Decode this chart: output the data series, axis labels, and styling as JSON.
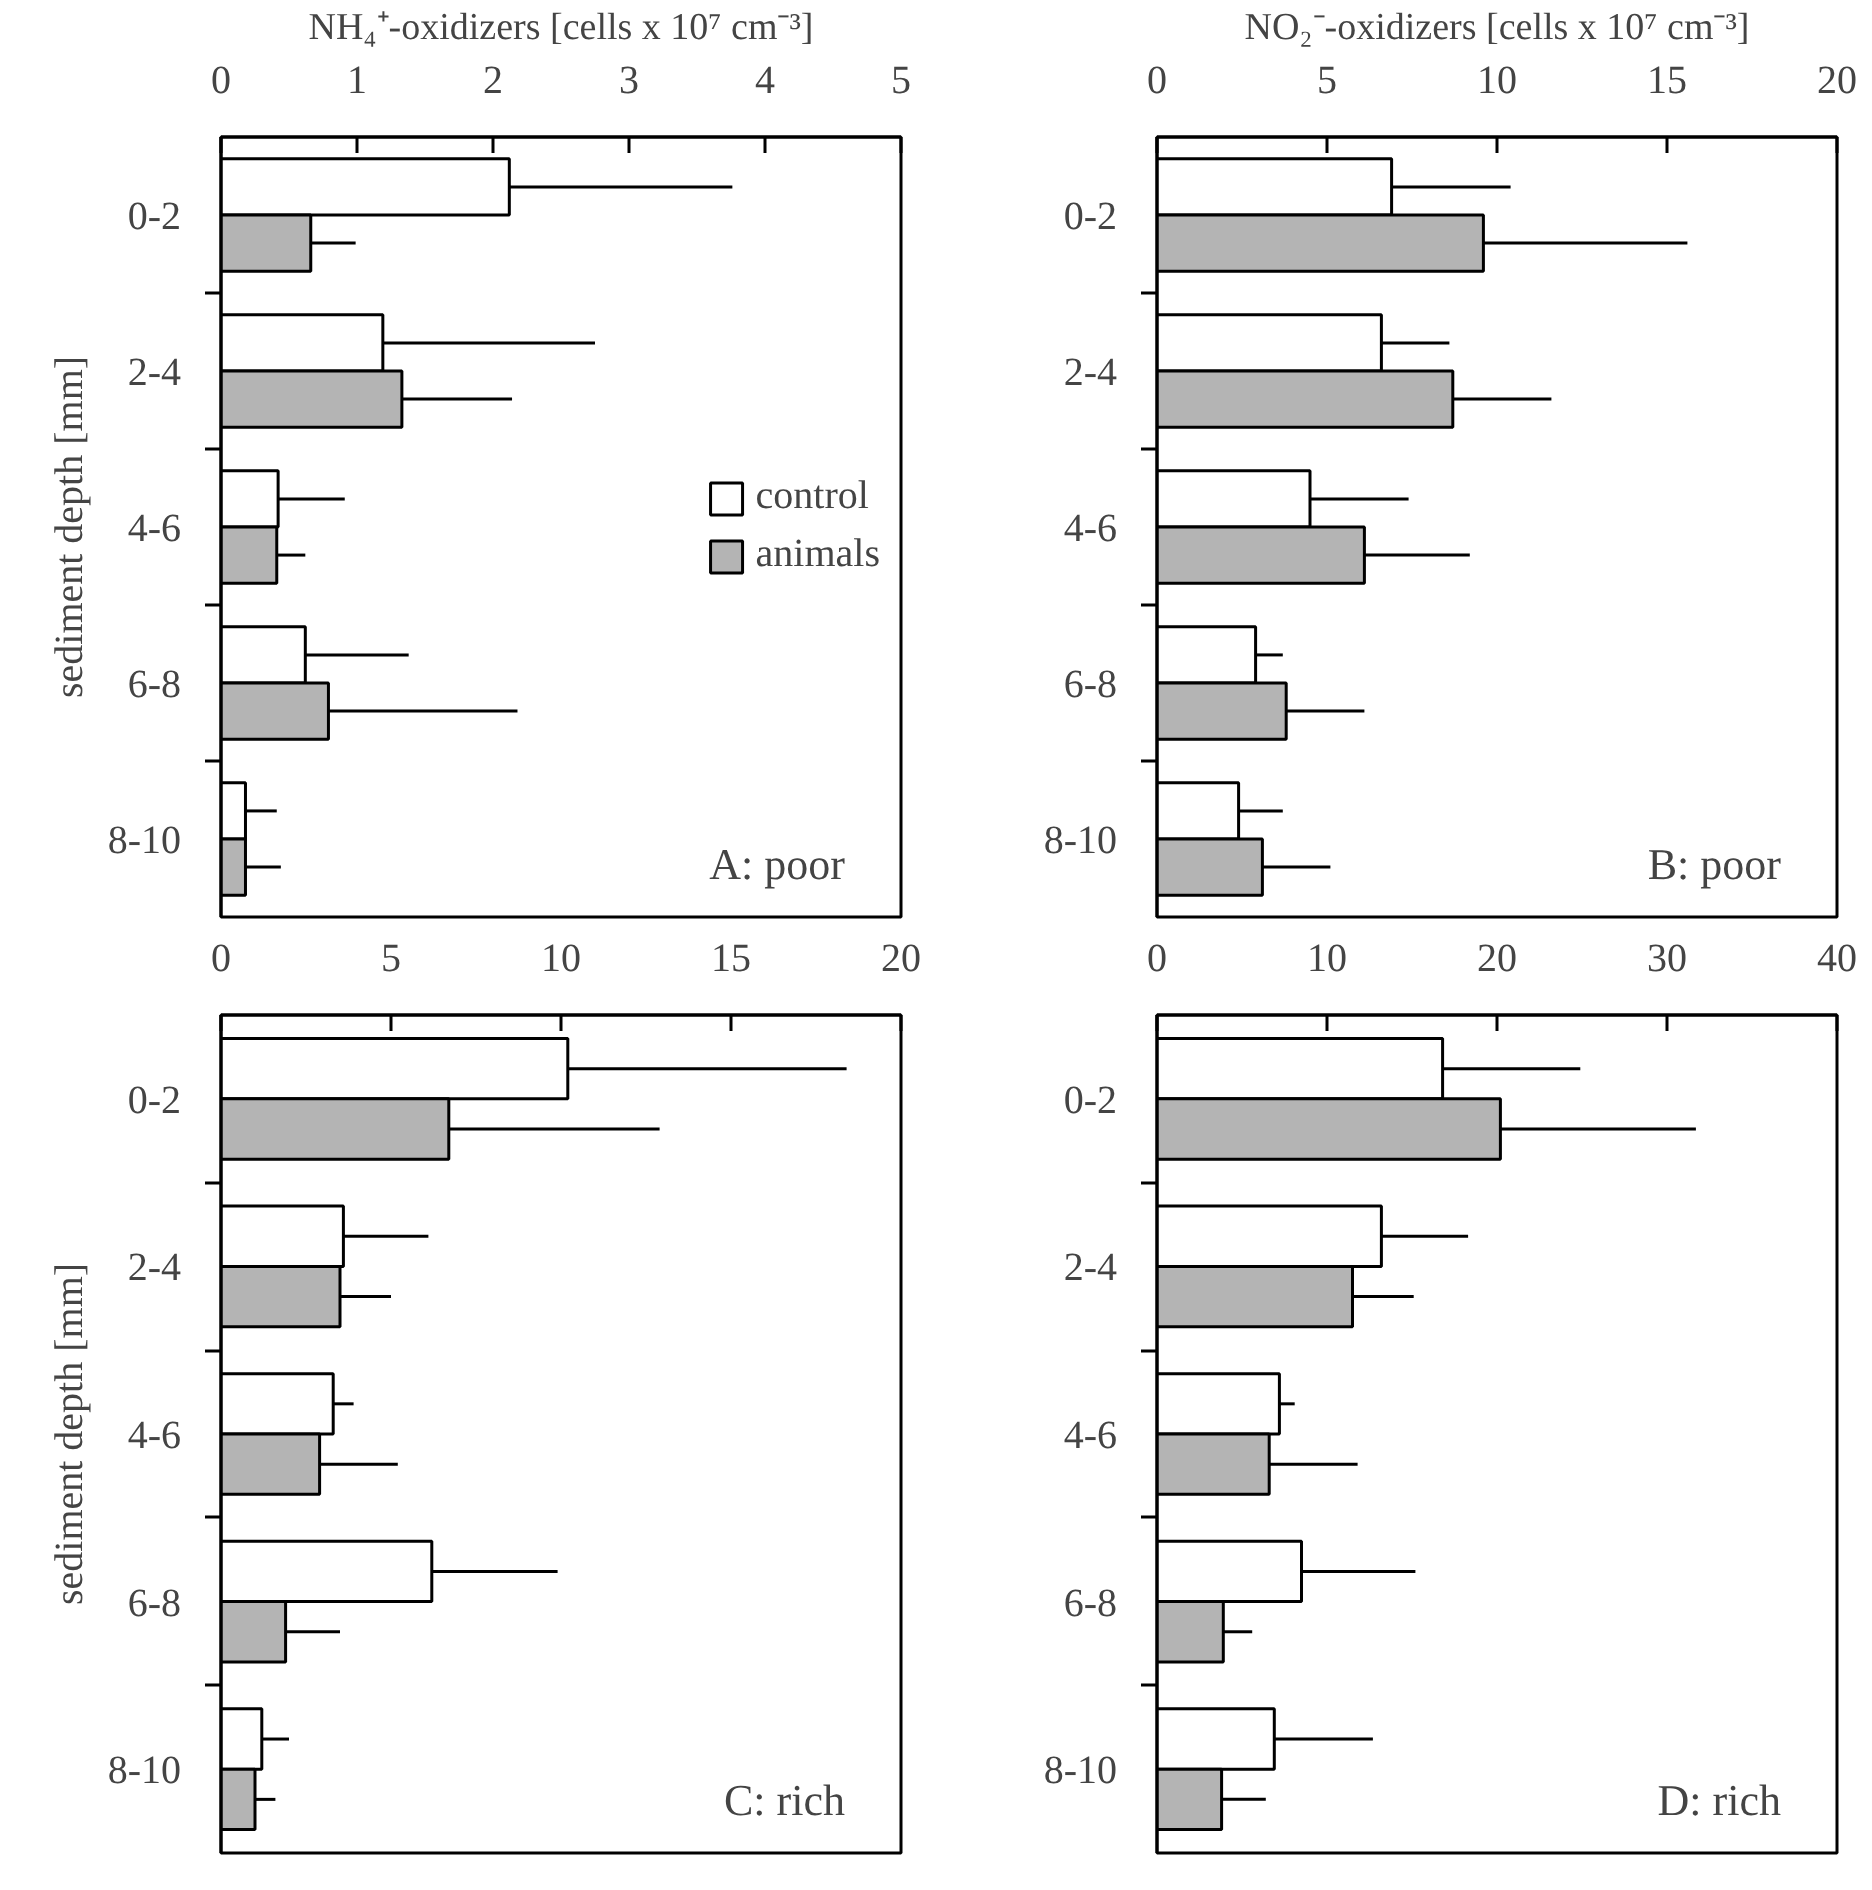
{
  "chart_data": [
    {
      "type": "bar",
      "orientation": "horizontal",
      "xlabel": "NH₄⁺-oxidizers [cells x 10⁷ cm⁻³]",
      "ylabel": "sediment depth [mm]",
      "categories": [
        "0-2",
        "2-4",
        "4-6",
        "6-8",
        "8-10"
      ],
      "xlim": [
        0,
        5
      ],
      "xticks": [
        0,
        1,
        2,
        3,
        4,
        5
      ],
      "legend": "right",
      "annotations": [
        "A: poor"
      ],
      "series": [
        {
          "name": "control",
          "color": "#ffffff",
          "values": [
            2.12,
            1.19,
            0.42,
            0.62,
            0.18
          ],
          "errors": [
            1.64,
            1.56,
            0.49,
            0.76,
            0.23
          ]
        },
        {
          "name": "animals",
          "color": "#b4b4b4",
          "values": [
            0.66,
            1.33,
            0.41,
            0.79,
            0.18
          ],
          "errors": [
            0.33,
            0.81,
            0.21,
            1.39,
            0.26
          ]
        }
      ]
    },
    {
      "type": "bar",
      "orientation": "horizontal",
      "xlabel": "NO₂⁻-oxidizers [cells x 10⁷ cm⁻³]",
      "categories": [
        "0-2",
        "2-4",
        "4-6",
        "6-8",
        "8-10"
      ],
      "xlim": [
        0,
        20
      ],
      "xticks": [
        0,
        5,
        10,
        15,
        20
      ],
      "annotations": [
        "B: poor"
      ],
      "series": [
        {
          "color": "#ffffff",
          "values": [
            6.9,
            6.6,
            4.5,
            2.9,
            2.4
          ],
          "errors": [
            3.5,
            2.0,
            2.9,
            0.8,
            1.3
          ]
        },
        {
          "color": "#b4b4b4",
          "values": [
            9.6,
            8.7,
            6.1,
            3.8,
            3.1
          ],
          "errors": [
            6.0,
            2.9,
            3.1,
            2.3,
            2.0
          ]
        }
      ]
    },
    {
      "type": "bar",
      "orientation": "horizontal",
      "ylabel": "sediment depth [mm]",
      "categories": [
        "0-2",
        "2-4",
        "4-6",
        "6-8",
        "8-10"
      ],
      "xlim": [
        0,
        20
      ],
      "xticks": [
        0,
        5,
        10,
        15,
        20
      ],
      "annotations": [
        "C: rich"
      ],
      "series": [
        {
          "color": "#ffffff",
          "values": [
            10.2,
            3.6,
            3.3,
            6.2,
            1.2
          ],
          "errors": [
            8.2,
            2.5,
            0.6,
            3.7,
            0.8
          ]
        },
        {
          "color": "#b4b4b4",
          "values": [
            6.7,
            3.5,
            2.9,
            1.9,
            1.0
          ],
          "errors": [
            6.2,
            1.5,
            2.3,
            1.6,
            0.6
          ]
        }
      ]
    },
    {
      "type": "bar",
      "orientation": "horizontal",
      "categories": [
        "0-2",
        "2-4",
        "4-6",
        "6-8",
        "8-10"
      ],
      "xlim": [
        0,
        40
      ],
      "xticks": [
        0,
        10,
        20,
        30,
        40
      ],
      "annotations": [
        "D: rich"
      ],
      "series": [
        {
          "color": "#ffffff",
          "values": [
            16.8,
            13.2,
            7.2,
            8.5,
            6.9
          ],
          "errors": [
            8.1,
            5.1,
            0.9,
            6.7,
            5.8
          ]
        },
        {
          "color": "#b4b4b4",
          "values": [
            20.2,
            11.5,
            6.6,
            3.9,
            3.8
          ],
          "errors": [
            11.5,
            3.6,
            5.2,
            1.7,
            2.6
          ]
        }
      ]
    }
  ]
}
